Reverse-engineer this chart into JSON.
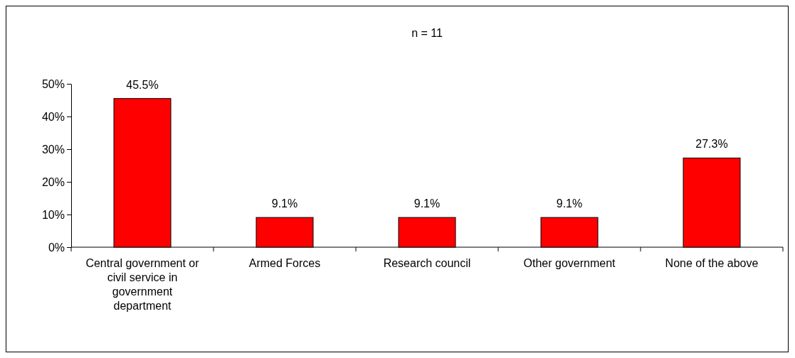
{
  "chart_data": {
    "type": "bar",
    "title": "n = 11",
    "categories": [
      "Central government or civil service in government department",
      "Armed Forces",
      "Research council",
      "Other government",
      "None of the above"
    ],
    "values": [
      45.5,
      9.1,
      9.1,
      9.1,
      27.3
    ],
    "value_labels": [
      "45.5%",
      "9.1%",
      "9.1%",
      "9.1%",
      "27.3%"
    ],
    "color": "#ff0000",
    "ylim": [
      0,
      50
    ],
    "yticks": [
      {
        "value": 0,
        "label": "0%"
      },
      {
        "value": 10,
        "label": "10%"
      },
      {
        "value": 20,
        "label": "20%"
      },
      {
        "value": 30,
        "label": "30%"
      },
      {
        "value": 40,
        "label": "40%"
      },
      {
        "value": 50,
        "label": "50%"
      }
    ],
    "grid": false
  }
}
